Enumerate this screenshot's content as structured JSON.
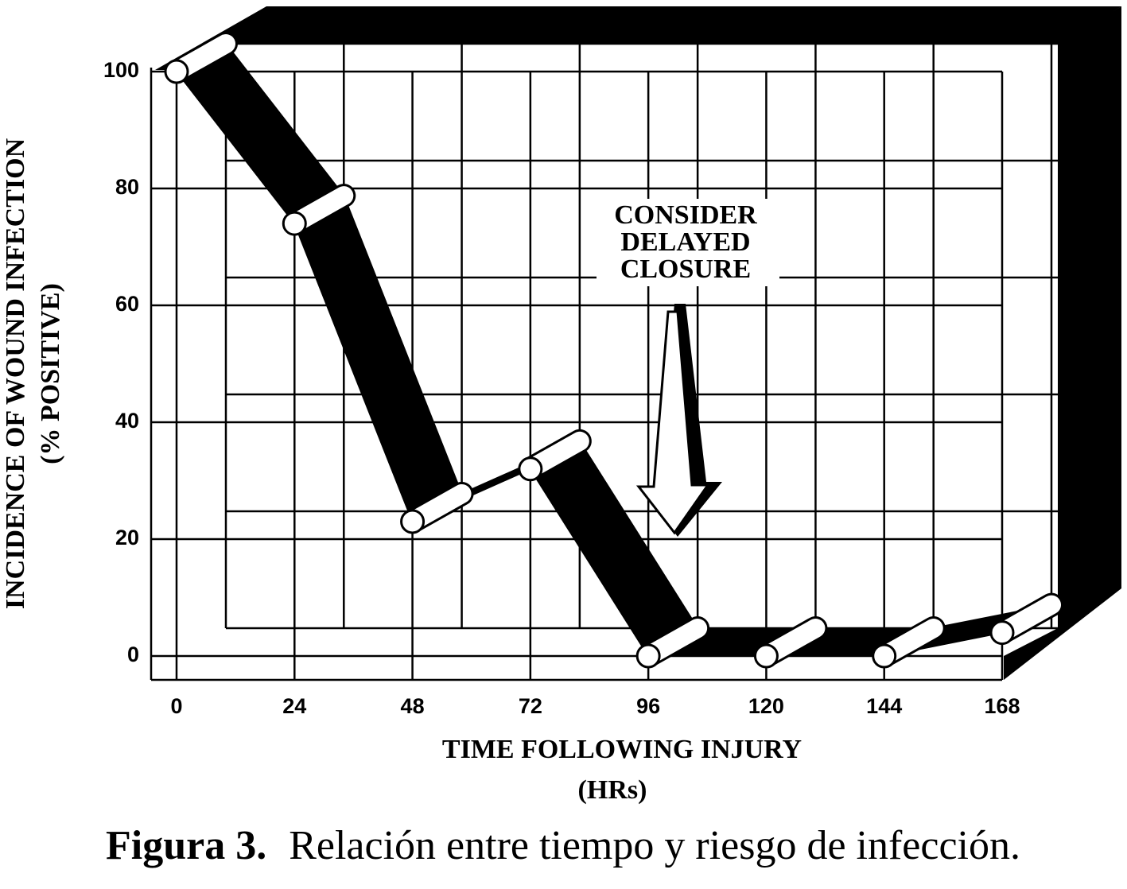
{
  "chart_data": {
    "type": "ribbon-line",
    "ylabel": [
      "INCIDENCE OF WOUND INFECTION",
      "(% POSITIVE)"
    ],
    "xlabel": [
      "TIME FOLLOWING INJURY",
      "(HRs)"
    ],
    "annotation": [
      "CONSIDER",
      "DELAYED",
      "CLOSURE"
    ],
    "x": [
      0,
      24,
      48,
      72,
      96,
      120,
      144,
      168
    ],
    "values": [
      100,
      74,
      23,
      32,
      0,
      0,
      0,
      4
    ],
    "color": "#000000",
    "xlim": [
      0,
      168
    ],
    "xticks": [
      0,
      24,
      48,
      72,
      96,
      120,
      144,
      168
    ],
    "ylim": [
      0,
      100
    ],
    "yticks": [
      0,
      20,
      40,
      60,
      80,
      100
    ],
    "grid": true
  },
  "caption": {
    "label": "Figura 3.",
    "text": "Relación entre tiempo y riesgo de infección."
  }
}
